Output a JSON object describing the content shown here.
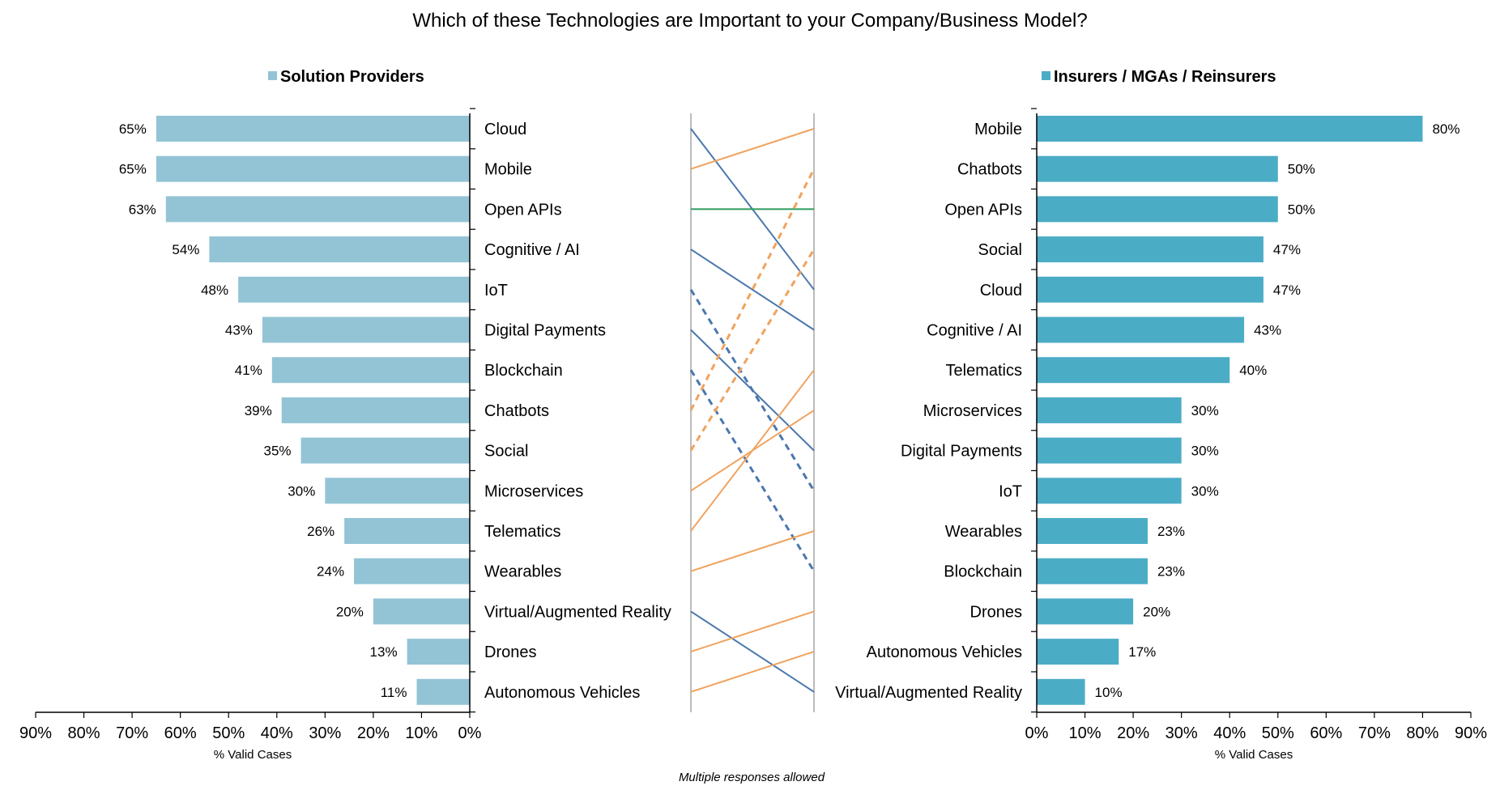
{
  "chart_data": {
    "type": "bar",
    "title": "Which of these Technologies are Important to your Company/Business Model?",
    "note": "Multiple responses allowed",
    "colors": {
      "left": "#93c4d5",
      "right": "#4bacc6",
      "link_orange": "#f0a35e",
      "link_blue": "#4a77ad",
      "link_green": "#2e9e5e",
      "divider": "#a6a6a6"
    },
    "left": {
      "legend": "Solution Providers",
      "xlabel": "% Valid Cases",
      "xlim": [
        0,
        90
      ],
      "ticks": [
        "90%",
        "80%",
        "70%",
        "60%",
        "50%",
        "40%",
        "30%",
        "20%",
        "10%",
        "0%"
      ],
      "categories": [
        "Cloud",
        "Mobile",
        "Open APIs",
        "Cognitive / AI",
        "IoT",
        "Digital Payments",
        "Blockchain",
        "Chatbots",
        "Social",
        "Microservices",
        "Telematics",
        "Wearables",
        "Virtual/Augmented Reality",
        "Drones",
        "Autonomous Vehicles"
      ],
      "values": [
        65,
        65,
        63,
        54,
        48,
        43,
        41,
        39,
        35,
        30,
        26,
        24,
        20,
        13,
        11
      ],
      "labels": [
        "65%",
        "65%",
        "63%",
        "54%",
        "48%",
        "43%",
        "41%",
        "39%",
        "35%",
        "30%",
        "26%",
        "24%",
        "20%",
        "13%",
        "11%"
      ]
    },
    "right": {
      "legend": "Insurers / MGAs / Reinsurers",
      "xlabel": "% Valid Cases",
      "xlim": [
        0,
        90
      ],
      "ticks": [
        "0%",
        "10%",
        "20%",
        "30%",
        "40%",
        "50%",
        "60%",
        "70%",
        "80%",
        "90%"
      ],
      "categories": [
        "Mobile",
        "Chatbots",
        "Open APIs",
        "Social",
        "Cloud",
        "Cognitive / AI",
        "Telematics",
        "Microservices",
        "Digital Payments",
        "IoT",
        "Wearables",
        "Blockchain",
        "Drones",
        "Autonomous Vehicles",
        "Virtual/Augmented Reality"
      ],
      "values": [
        80,
        50,
        50,
        47,
        47,
        43,
        40,
        30,
        30,
        30,
        23,
        23,
        20,
        17,
        10
      ],
      "labels": [
        "80%",
        "50%",
        "50%",
        "47%",
        "47%",
        "43%",
        "40%",
        "30%",
        "30%",
        "30%",
        "23%",
        "23%",
        "20%",
        "17%",
        "10%"
      ]
    }
  }
}
